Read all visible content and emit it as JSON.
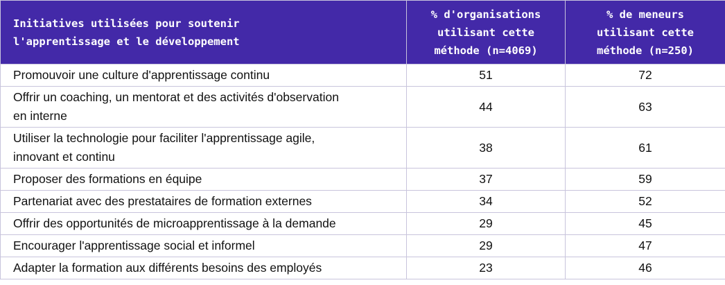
{
  "headers": {
    "col1_line1": "Initiatives utilisées pour soutenir",
    "col1_line2": "l'apprentissage et le développement",
    "col2_line1": "% d'organisations",
    "col2_line2": "utilisant cette",
    "col2_line3": "méthode (n=4069)",
    "col3_line1": "% de meneurs",
    "col3_line2": "utilisant cette",
    "col3_line3": "méthode (n=250)"
  },
  "rows": [
    {
      "line1": "Promouvoir une culture d'apprentissage continu",
      "line2": "",
      "org": "51",
      "leaders": "72"
    },
    {
      "line1": "Offrir un coaching, un mentorat et des activités d'observation",
      "line2": "en interne",
      "org": "44",
      "leaders": "63"
    },
    {
      "line1": "Utiliser la technologie pour faciliter l'apprentissage agile,",
      "line2": "innovant et continu",
      "org": "38",
      "leaders": "61"
    },
    {
      "line1": "Proposer des formations en équipe",
      "line2": "",
      "org": "37",
      "leaders": "59"
    },
    {
      "line1": "Partenariat avec des prestataires de formation externes",
      "line2": "",
      "org": "34",
      "leaders": "52"
    },
    {
      "line1": "Offrir des opportunités de microapprentissage à la demande",
      "line2": "",
      "org": "29",
      "leaders": "45"
    },
    {
      "line1": "Encourager l'apprentissage social et informel",
      "line2": "",
      "org": "29",
      "leaders": "47"
    },
    {
      "line1": "Adapter la formation aux différents besoins des employés",
      "line2": "",
      "org": "23",
      "leaders": "46"
    }
  ]
}
